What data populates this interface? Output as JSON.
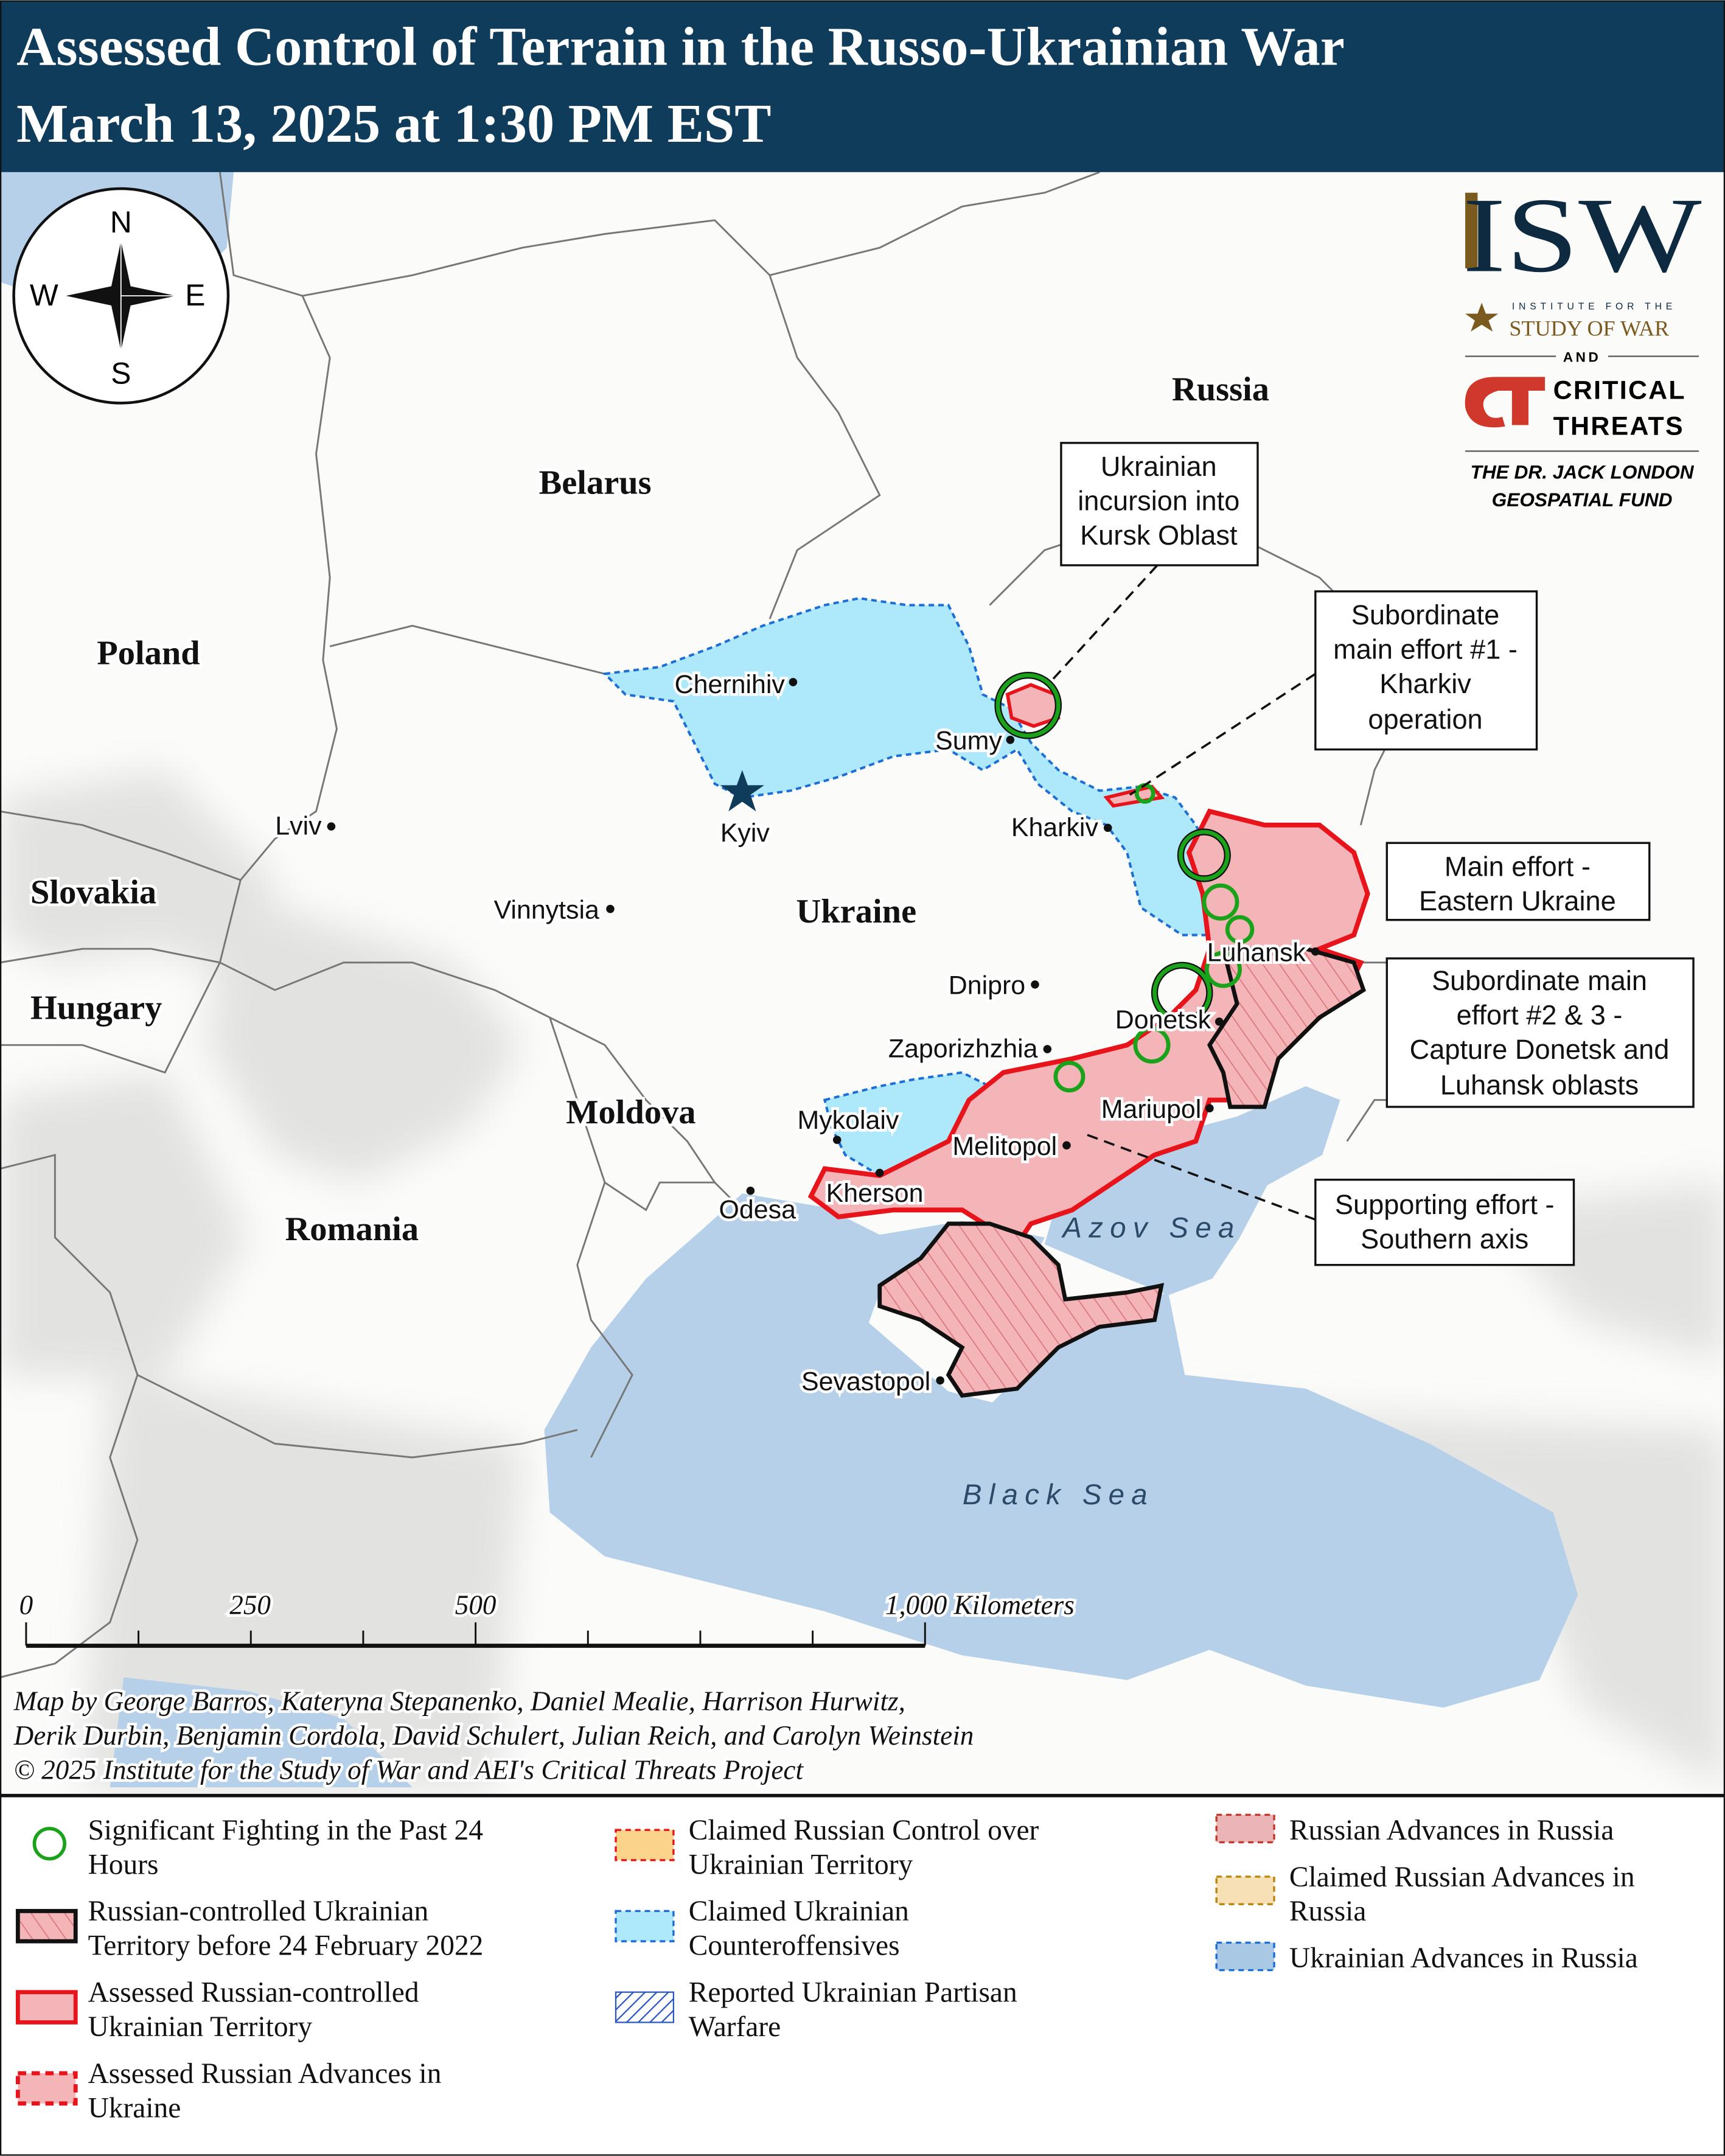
{
  "header": {
    "title_line1": "Assessed Control of Terrain in the Russo-Ukrainian War",
    "title_line2": "March 13, 2025 at 1:30 PM EST",
    "background_color": "#0e3c5a"
  },
  "compass": {
    "n": "N",
    "s": "S",
    "e": "E",
    "w": "W"
  },
  "logo": {
    "isw": "ISW",
    "isw_sub1": "INSTITUTE FOR THE",
    "isw_sub2": "STUDY OF WAR",
    "and": "AND",
    "ct_line1": "CRITICAL",
    "ct_line2": "THREATS",
    "fund_line1": "THE DR. JACK LONDON",
    "fund_line2": "GEOSPATIAL FUND"
  },
  "countries": [
    "Russia",
    "Belarus",
    "Poland",
    "Ukraine",
    "Slovakia",
    "Hungary",
    "Moldova",
    "Romania"
  ],
  "cities": [
    "Chernihiv",
    "Sumy",
    "Kyiv",
    "Kharkiv",
    "Lviv",
    "Vinnytsia",
    "Dnipro",
    "Zaporizhzhia",
    "Luhansk",
    "Donetsk",
    "Mariupol",
    "Melitopol",
    "Mykolaiv",
    "Kherson",
    "Odesa",
    "Sevastopol"
  ],
  "seas": [
    "Azov Sea",
    "Black Sea"
  ],
  "callouts": [
    {
      "lines": [
        "Ukrainian",
        "incursion into",
        "Kursk Oblast"
      ]
    },
    {
      "lines": [
        "Subordinate",
        "main effort #1 -",
        "Kharkiv",
        "operation"
      ]
    },
    {
      "lines": [
        "Main effort -",
        "Eastern Ukraine"
      ]
    },
    {
      "lines": [
        "Subordinate main",
        "effort #2 & 3 -",
        "Capture Donetsk and",
        "Luhansk oblasts"
      ]
    },
    {
      "lines": [
        "Supporting effort -",
        "Southern axis"
      ]
    }
  ],
  "scale_bar": {
    "labels": [
      "0",
      "250",
      "500",
      "1,000 Kilometers"
    ],
    "max_km": 1000
  },
  "credits": [
    "Map by George Barros, Kateryna Stepanenko, Daniel Mealie, Harrison Hurwitz,",
    "Derik Durbin, Benjamin Cordola, David Schulert, Julian Reich, and Carolyn Weinstein",
    "© 2025 Institute for the Study of War and AEI's Critical Threats Project"
  ],
  "legend": [
    {
      "lines": [
        "Significant Fighting in the Past 24",
        "Hours"
      ],
      "symbol": "green-circle"
    },
    {
      "lines": [
        "Russian-controlled Ukrainian",
        "Territory before 24 February 2022"
      ],
      "symbol": "black-hatched"
    },
    {
      "lines": [
        "Assessed Russian-controlled",
        "Ukrainian Territory"
      ],
      "symbol": "red-solid"
    },
    {
      "lines": [
        "Assessed Russian Advances in",
        "Ukraine"
      ],
      "symbol": "red-dashed"
    },
    {
      "lines": [
        "Claimed Russian Control over",
        "Ukrainian Territory"
      ],
      "symbol": "orange-dashed"
    },
    {
      "lines": [
        "Claimed Ukrainian",
        "Counteroffensives"
      ],
      "symbol": "blue-dashed"
    },
    {
      "lines": [
        "Reported Ukrainian Partisan",
        "Warfare"
      ],
      "symbol": "blue-hatched"
    },
    {
      "lines": [
        "Russian Advances in Russia"
      ],
      "symbol": "pink-dashed"
    },
    {
      "lines": [
        "Claimed Russian Advances in",
        "Russia"
      ],
      "symbol": "tan-dashed"
    },
    {
      "lines": [
        "Ukrainian Advances in Russia"
      ],
      "symbol": "steel-blue-dashed"
    }
  ],
  "colors": {
    "russian_control": "#f4b5b8",
    "russian_border": "#e8141c",
    "ukrainian_counteroffensive": "#aee9fb",
    "ukrainian_border": "#1d6fd6",
    "water": "#b5d0e8",
    "fighting": "#1aa31a"
  }
}
